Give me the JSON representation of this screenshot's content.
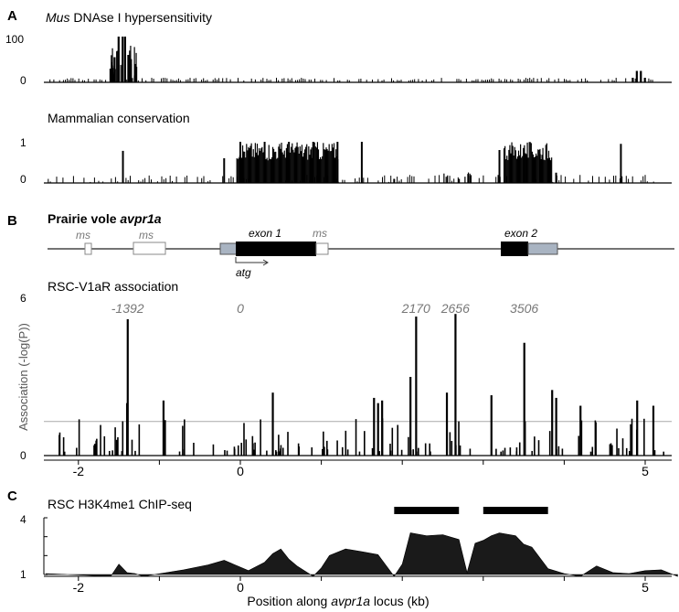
{
  "panels": {
    "A": {
      "letter": "A",
      "dnase": {
        "title_italic": "Mus",
        "title_rest": " DNAse I hypersensitivity",
        "ytick_top": "100",
        "ytick_bottom": "0"
      },
      "conservation": {
        "title": "Mammalian conservation",
        "ytick_top": "1",
        "ytick_bottom": "0"
      }
    },
    "B": {
      "letter": "B",
      "gene": {
        "title_plain": "Prairie vole ",
        "title_italic": "avpr1a",
        "exon1": "exon 1",
        "exon2": "exon 2",
        "ms": "ms",
        "atg": "atg"
      },
      "assoc": {
        "title": "RSC-V1aR association",
        "ylabel": "Association  (-log(P))",
        "ytick_top": "6",
        "ytick_bottom": "0"
      }
    },
    "C": {
      "letter": "C",
      "chip": {
        "title": "RSC H3K4me1 ChIP-seq",
        "ytick_top": "4",
        "ytick_bottom": "1"
      }
    }
  },
  "xaxis": {
    "label_pre": "Position along ",
    "label_italic": "avpr1a",
    "label_post": " locus (kb)"
  },
  "chart_data": [
    {
      "type": "bar",
      "panel": "A-top",
      "title": "Mus DNAse I hypersensitivity",
      "ylim": [
        0,
        100
      ],
      "series": [
        {
          "peaks": [
            {
              "x": -1.6,
              "y": 30
            },
            {
              "x": -1.55,
              "y": 55
            },
            {
              "x": -1.5,
              "y": 100
            },
            {
              "x": -1.45,
              "y": 100
            },
            {
              "x": -1.42,
              "y": 100
            },
            {
              "x": -1.38,
              "y": 60
            },
            {
              "x": -1.35,
              "y": 40
            },
            {
              "x": -1.3,
              "y": 15
            },
            {
              "x": 4.85,
              "y": 10
            },
            {
              "x": 4.9,
              "y": 25
            },
            {
              "x": 4.95,
              "y": 25
            },
            {
              "x": 5.0,
              "y": 10
            }
          ]
        }
      ]
    },
    {
      "type": "bar",
      "panel": "A-bottom",
      "title": "Mammalian conservation",
      "ylim": [
        0,
        1
      ],
      "series": [
        {
          "peaks": [
            {
              "x": -1.45,
              "y": 0.78
            },
            {
              "x": -0.2,
              "y": 0.6
            },
            {
              "x": 0.0,
              "y": 1.0
            },
            {
              "x": 0.3,
              "y": 1.0
            },
            {
              "x": 0.6,
              "y": 1.0
            },
            {
              "x": 0.9,
              "y": 1.0
            },
            {
              "x": 1.2,
              "y": 1.0
            },
            {
              "x": 1.5,
              "y": 1.0
            },
            {
              "x": 1.9,
              "y": 0.1
            },
            {
              "x": 2.7,
              "y": 0.1
            },
            {
              "x": 3.2,
              "y": 0.8
            },
            {
              "x": 3.5,
              "y": 0.85
            },
            {
              "x": 3.7,
              "y": 0.7
            },
            {
              "x": 3.9,
              "y": 0.25
            },
            {
              "x": 4.7,
              "y": 0.95
            }
          ]
        }
      ]
    },
    {
      "type": "bar",
      "panel": "B",
      "title": "RSC-V1aR association",
      "ylabel": "Association  (-log(P))",
      "ylim": [
        0,
        6
      ],
      "threshold": 1.3,
      "annotations": [
        "-1392",
        "0",
        "2170",
        "2656",
        "3506"
      ],
      "series": [
        {
          "peaks": [
            {
              "x": -1.392,
              "y": 5.2
            },
            {
              "x": 2.17,
              "y": 5.3
            },
            {
              "x": 2.656,
              "y": 5.4
            },
            {
              "x": 3.506,
              "y": 4.3
            },
            {
              "x": -1.4,
              "y": 2.0
            },
            {
              "x": -0.95,
              "y": 2.1
            },
            {
              "x": 0.4,
              "y": 2.4
            },
            {
              "x": 1.75,
              "y": 2.1
            },
            {
              "x": 1.7,
              "y": 2.0
            },
            {
              "x": 1.65,
              "y": 2.2
            },
            {
              "x": 2.1,
              "y": 3.0
            },
            {
              "x": 2.55,
              "y": 2.4
            },
            {
              "x": 3.1,
              "y": 2.3
            },
            {
              "x": 3.85,
              "y": 2.5
            },
            {
              "x": 3.9,
              "y": 2.2
            },
            {
              "x": 4.2,
              "y": 1.9
            },
            {
              "x": 4.9,
              "y": 2.1
            },
            {
              "x": 5.1,
              "y": 1.9
            }
          ]
        }
      ]
    },
    {
      "type": "area",
      "panel": "C",
      "title": "RSC H3K4me1 ChIP-seq",
      "ylim": [
        1,
        4
      ],
      "x": [
        -2.4,
        -1.6,
        -1.5,
        -1.4,
        -1.3,
        -1.2,
        -0.7,
        -0.4,
        -0.2,
        0.1,
        0.3,
        0.4,
        0.5,
        0.6,
        0.7,
        0.9,
        1.0,
        1.1,
        1.3,
        1.5,
        1.7,
        1.9,
        2.0,
        2.1,
        2.3,
        2.5,
        2.7,
        2.8,
        2.9,
        3.0,
        3.1,
        3.2,
        3.4,
        3.5,
        3.6,
        3.8,
        4.0,
        4.2,
        4.4,
        4.6,
        4.8,
        5.0,
        5.2,
        5.4
      ],
      "y": [
        1.0,
        1.0,
        1.5,
        1.2,
        1.0,
        1.0,
        1.2,
        1.6,
        1.7,
        1.3,
        1.6,
        2.2,
        2.3,
        1.9,
        1.4,
        1.0,
        1.3,
        2.1,
        2.3,
        2.3,
        2.0,
        1.0,
        1.5,
        3.3,
        3.0,
        3.2,
        2.8,
        1.2,
        2.6,
        2.9,
        3.0,
        3.3,
        3.0,
        2.7,
        2.4,
        1.4,
        1.0,
        1.0,
        1.4,
        1.2,
        1.0,
        1.3,
        1.2,
        1.0
      ],
      "bars": [
        {
          "x0": 1.9,
          "x1": 2.7
        },
        {
          "x0": 3.0,
          "x1": 3.8
        }
      ]
    }
  ]
}
